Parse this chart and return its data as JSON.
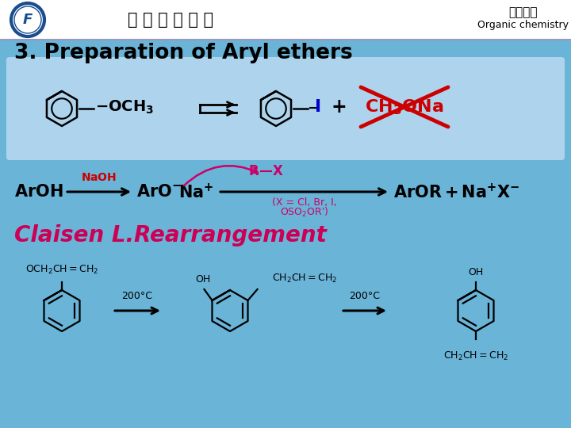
{
  "bg_color": "#6ab4d8",
  "box_bg": "#aed4ed",
  "header_sep_color": "#9999bb",
  "school_name": "河 南 工 程 学 院",
  "top_right_cn": "有机化学",
  "top_right_en": "Organic chemistry",
  "title": "3. Preparation of Aryl ethers",
  "title_fontsize": 19,
  "claisen_text": "Claisen L.Rearrangement",
  "claisen_color": "#cc0055",
  "claisen_fontsize": 20,
  "red_color": "#cc0000",
  "blue_color": "#0000cc",
  "magenta_color": "#cc0066",
  "black_color": "#000000",
  "temp_label": "200℃"
}
